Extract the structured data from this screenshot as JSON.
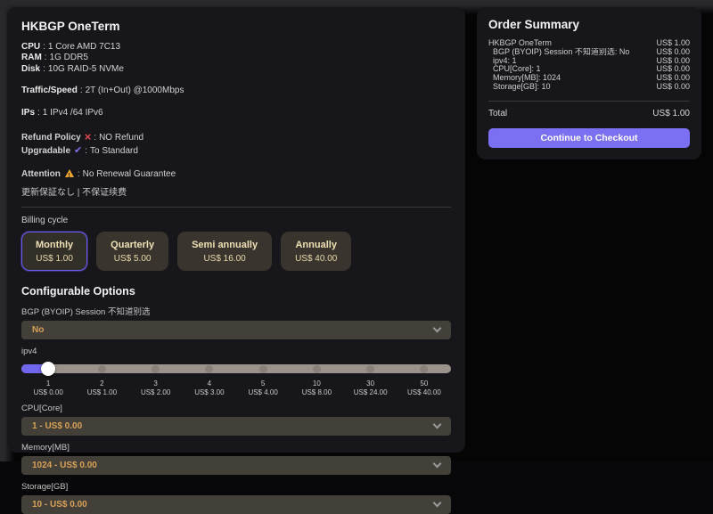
{
  "ui": {
    "sep": ":"
  },
  "icons": {
    "cross": "×",
    "check": "✔",
    "warning": "triangle-exclamation",
    "chevron": "chevron-down"
  },
  "colors": {
    "accent_purple": "#6a5cf0",
    "checkout_button": "#7b70f1",
    "danger_red": "#e0474c",
    "check_purple": "#7f72f2",
    "warning_amber": "#eca62f",
    "option_text_cream": "#eee0b4",
    "select_text_amber": "#d9a257",
    "card_bg": "#17171b",
    "slider_track": "#9c928c",
    "slider_fill": "#7166ee"
  },
  "product": {
    "title": "HKBGP OneTerm",
    "lines": [
      {
        "label": "CPU",
        "value": "1 Core AMD 7C13"
      },
      {
        "label": "RAM",
        "value": "1G DDR5"
      },
      {
        "label": "Disk",
        "value": "10G RAID-5 NVMe"
      },
      {
        "label": "Traffic/Speed",
        "value": "2T (In+Out) @1000Mbps",
        "gap": true
      },
      {
        "label": "IPs",
        "value": "1 IPv4 /64 IPv6",
        "gap": true
      }
    ],
    "refund": {
      "label": "Refund Policy",
      "value": "NO Refund"
    },
    "upgradable": {
      "label": "Upgradable",
      "value": "To Standard"
    },
    "attention": {
      "label": "Attention",
      "value": "No Renewal Guarantee",
      "note": "更新保証なし | 不保证续费"
    }
  },
  "billing": {
    "label": "Billing cycle",
    "options": [
      {
        "name": "Monthly",
        "price": "US$ 1.00",
        "selected": true
      },
      {
        "name": "Quarterly",
        "price": "US$ 5.00"
      },
      {
        "name": "Semi annually",
        "price": "US$ 16.00"
      },
      {
        "name": "Annually",
        "price": "US$ 40.00"
      }
    ]
  },
  "configurable": {
    "title": "Configurable Options",
    "bgp": {
      "label": "BGP (BYOIP) Session 不知道别选",
      "value": "No"
    },
    "ipv4": {
      "label": "ipv4",
      "selected_index": 0,
      "stops": [
        {
          "qty": "1",
          "price": "US$ 0.00"
        },
        {
          "qty": "2",
          "price": "US$ 1.00"
        },
        {
          "qty": "3",
          "price": "US$ 2.00"
        },
        {
          "qty": "4",
          "price": "US$ 3.00"
        },
        {
          "qty": "5",
          "price": "US$ 4.00"
        },
        {
          "qty": "10",
          "price": "US$ 8.00"
        },
        {
          "qty": "30",
          "price": "US$ 24.00"
        },
        {
          "qty": "50",
          "price": "US$ 40.00"
        }
      ]
    },
    "cpu": {
      "label": "CPU[Core]",
      "value": "1 - US$ 0.00"
    },
    "memory": {
      "label": "Memory[MB]",
      "value": "1024 - US$ 0.00"
    },
    "storage": {
      "label": "Storage[GB]",
      "value": "10 - US$ 0.00"
    }
  },
  "summary": {
    "title": "Order Summary",
    "items": [
      {
        "label": "HKBGP OneTerm",
        "price": "US$ 1.00"
      },
      {
        "label": "BGP (BYOIP) Session 不知道别选: No",
        "price": "US$ 0.00",
        "indent": true
      },
      {
        "label": "ipv4: 1",
        "price": "US$ 0.00",
        "indent": true
      },
      {
        "label": "CPU[Core]: 1",
        "price": "US$ 0.00",
        "indent": true
      },
      {
        "label": "Memory[MB]: 1024",
        "price": "US$ 0.00",
        "indent": true
      },
      {
        "label": "Storage[GB]: 10",
        "price": "US$ 0.00",
        "indent": true
      }
    ],
    "total_label": "Total",
    "total_price": "US$ 1.00",
    "checkout_label": "Continue to Checkout"
  }
}
